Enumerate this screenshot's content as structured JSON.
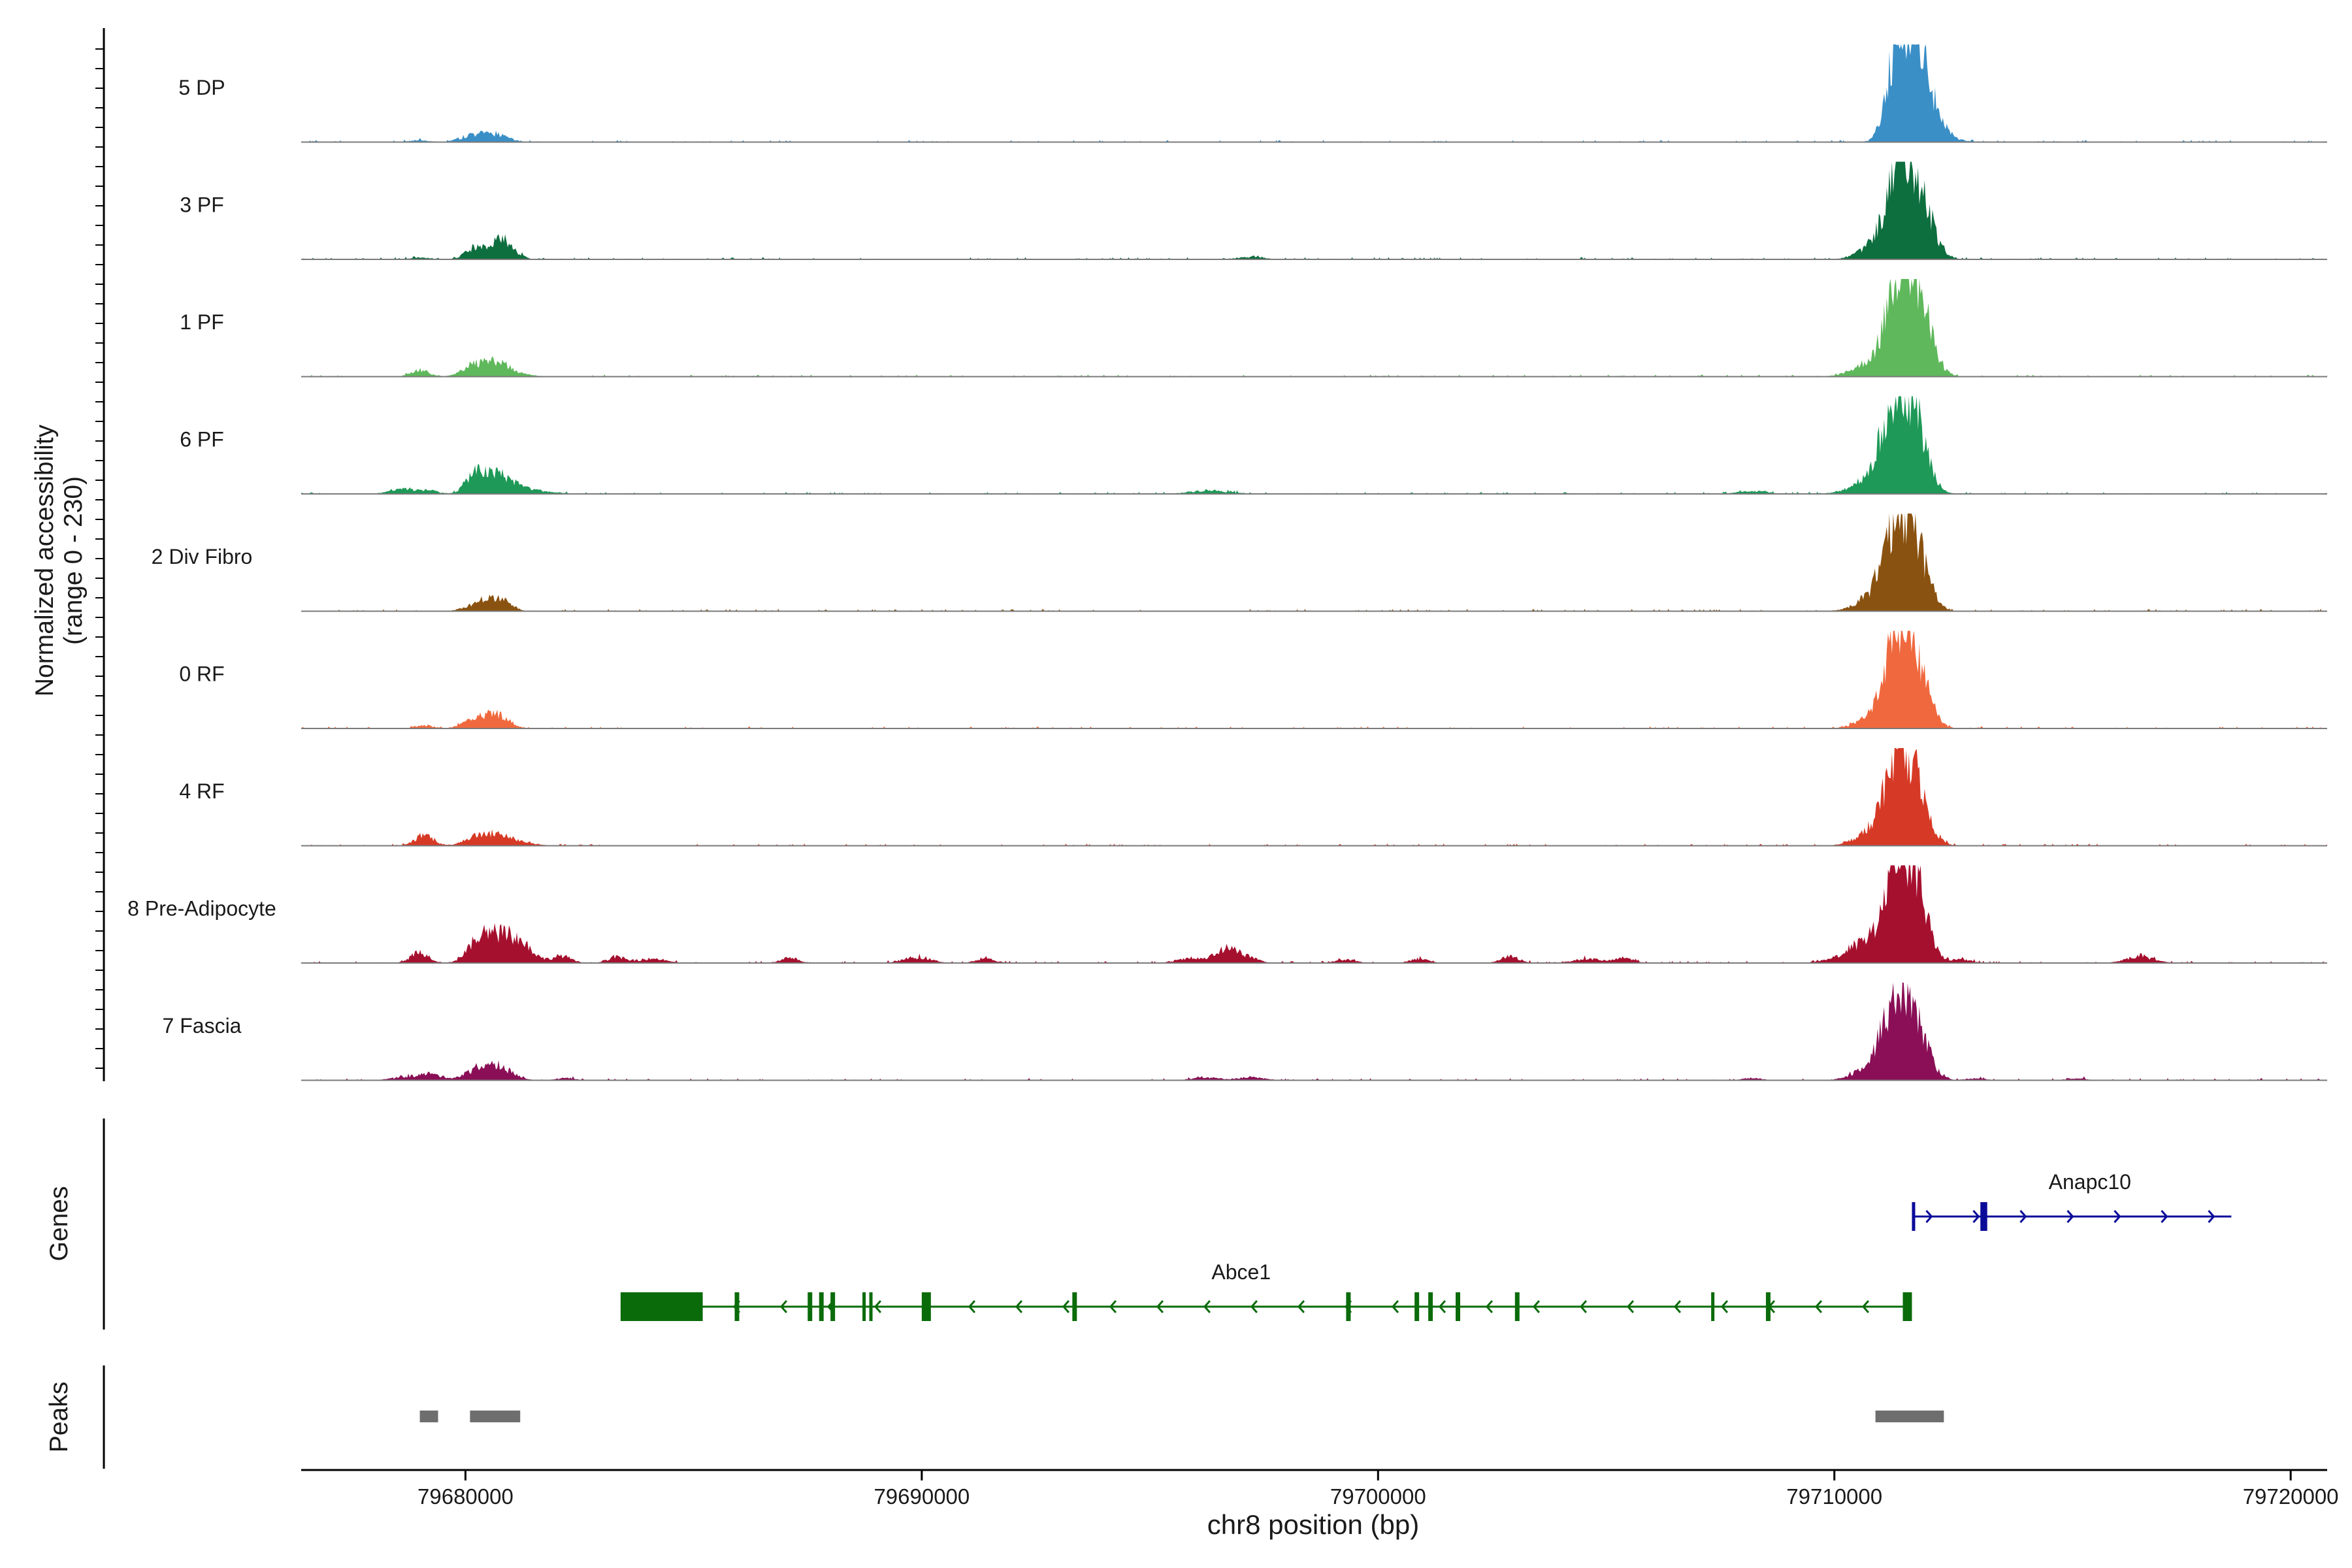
{
  "chart_data": {
    "type": "area",
    "chromosome": "chr8",
    "xlabel": "chr8 position (bp)",
    "xlim": [
      79676400,
      79720800
    ],
    "x_ticks": [
      79680000,
      79690000,
      79700000,
      79710000,
      79720000
    ],
    "x_tick_labels": [
      "79680000",
      "79690000",
      "79700000",
      "79710000",
      "79720000"
    ],
    "coverage_ylabel": [
      "Normalized accessibility",
      "(range 0 - 230)"
    ],
    "coverage_ylim": [
      0,
      230
    ],
    "genes_label": "Genes",
    "peaks_label": "Peaks",
    "series": [
      {
        "name": "5 DP",
        "color": "#3a8fc7",
        "peaks": [
          [
            79711700,
            230,
            300
          ],
          [
            79711300,
            140,
            200
          ],
          [
            79711900,
            80,
            400
          ],
          [
            79680600,
            22,
            300
          ],
          [
            79680100,
            14,
            250
          ],
          [
            79679000,
            6,
            200
          ]
        ]
      },
      {
        "name": "3 PF",
        "color": "#0d6e3e",
        "peaks": [
          [
            79711800,
            200,
            300
          ],
          [
            79711400,
            150,
            250
          ],
          [
            79711100,
            60,
            400
          ],
          [
            79680800,
            55,
            250
          ],
          [
            79680200,
            30,
            200
          ],
          [
            79679000,
            6,
            200
          ],
          [
            79697200,
            6,
            300
          ]
        ]
      },
      {
        "name": "1 PF",
        "color": "#5fb85b",
        "peaks": [
          [
            79711800,
            210,
            300
          ],
          [
            79711400,
            190,
            250
          ],
          [
            79711000,
            50,
            450
          ],
          [
            79680700,
            38,
            250
          ],
          [
            79680200,
            30,
            250
          ],
          [
            79679000,
            18,
            200
          ],
          [
            79681200,
            6,
            300
          ]
        ]
      },
      {
        "name": "6 PF",
        "color": "#1e9957",
        "peaks": [
          [
            79711700,
            210,
            300
          ],
          [
            79711300,
            160,
            250
          ],
          [
            79711000,
            60,
            450
          ],
          [
            79680700,
            45,
            300
          ],
          [
            79680200,
            50,
            200
          ],
          [
            79678600,
            16,
            250
          ],
          [
            79679200,
            10,
            200
          ],
          [
            79681200,
            14,
            500
          ],
          [
            79696300,
            10,
            400
          ],
          [
            79708200,
            8,
            300
          ]
        ]
      },
      {
        "name": "2 Div Fibro",
        "color": "#8a5210",
        "peaks": [
          [
            79711700,
            200,
            300
          ],
          [
            79711300,
            140,
            250
          ],
          [
            79711000,
            50,
            400
          ],
          [
            79680700,
            38,
            250
          ],
          [
            79680200,
            16,
            250
          ]
        ]
      },
      {
        "name": "0 RF",
        "color": "#f0693e",
        "peaks": [
          [
            79711700,
            210,
            300
          ],
          [
            79711300,
            140,
            250
          ],
          [
            79711000,
            40,
            400
          ],
          [
            79680700,
            38,
            250
          ],
          [
            79680200,
            22,
            250
          ],
          [
            79679100,
            8,
            200
          ]
        ]
      },
      {
        "name": "4 RF",
        "color": "#d63a26",
        "peaks": [
          [
            79711700,
            200,
            300
          ],
          [
            79711300,
            130,
            250
          ],
          [
            79711000,
            50,
            400
          ],
          [
            79679100,
            30,
            200
          ],
          [
            79680700,
            28,
            250
          ],
          [
            79680200,
            24,
            250
          ],
          [
            79681200,
            10,
            300
          ]
        ]
      },
      {
        "name": "8 Pre-Adipocyte",
        "color": "#a6102f",
        "peaks": [
          [
            79711700,
            230,
            300
          ],
          [
            79711300,
            150,
            250
          ],
          [
            79710800,
            60,
            500
          ],
          [
            79680800,
            70,
            350
          ],
          [
            79680300,
            50,
            250
          ],
          [
            79679000,
            30,
            200
          ],
          [
            79681300,
            30,
            250
          ],
          [
            79682100,
            20,
            200
          ],
          [
            79683300,
            16,
            200
          ],
          [
            79684100,
            12,
            300
          ],
          [
            79687100,
            14,
            200
          ],
          [
            79689900,
            16,
            300
          ],
          [
            79691400,
            12,
            200
          ],
          [
            79695900,
            12,
            300
          ],
          [
            79696700,
            40,
            250
          ],
          [
            79697200,
            12,
            200
          ],
          [
            79699300,
            10,
            200
          ],
          [
            79700900,
            12,
            200
          ],
          [
            79702900,
            18,
            200
          ],
          [
            79704600,
            12,
            300
          ],
          [
            79705400,
            14,
            200
          ],
          [
            79712800,
            10,
            200
          ],
          [
            79716700,
            18,
            300
          ]
        ]
      },
      {
        "name": "7 Fascia",
        "color": "#8a0f56",
        "peaks": [
          [
            79711700,
            180,
            300
          ],
          [
            79711300,
            120,
            250
          ],
          [
            79711000,
            60,
            400
          ],
          [
            79680700,
            38,
            300
          ],
          [
            79680200,
            22,
            250
          ],
          [
            79679200,
            16,
            300
          ],
          [
            79678600,
            6,
            300
          ],
          [
            79682200,
            6,
            200
          ],
          [
            79696200,
            8,
            300
          ],
          [
            79697200,
            8,
            300
          ],
          [
            79708200,
            6,
            200
          ],
          [
            79713100,
            6,
            200
          ],
          [
            79715300,
            6,
            200
          ]
        ]
      }
    ],
    "genes": [
      {
        "name": "Abce1",
        "strand": "-",
        "start": 79683400,
        "end": 79711700,
        "color": "#0a6b0a",
        "exons": [
          [
            79683400,
            79685200
          ],
          [
            79685900,
            79686000
          ],
          [
            79687500,
            79687600
          ],
          [
            79687750,
            79687850
          ],
          [
            79688000,
            79688100
          ],
          [
            79688700,
            79688750
          ],
          [
            79688850,
            79688900
          ],
          [
            79690000,
            79690200
          ],
          [
            79693300,
            79693400
          ],
          [
            79699300,
            79699400
          ],
          [
            79700800,
            79700900
          ],
          [
            79701100,
            79701200
          ],
          [
            79701700,
            79701800
          ],
          [
            79703000,
            79703100
          ],
          [
            79707300,
            79707350
          ],
          [
            79708500,
            79708600
          ],
          [
            79711500,
            79711700
          ]
        ]
      },
      {
        "name": "Anapc10",
        "strand": "+",
        "start": 79711700,
        "end": 79718700,
        "color": "#0a0a99",
        "exons": [
          [
            79711700,
            79711750
          ],
          [
            79713200,
            79713350
          ]
        ]
      }
    ],
    "peaks_track": [
      [
        79679000,
        79679400
      ],
      [
        79680100,
        79681200
      ],
      [
        79710900,
        79712400
      ]
    ]
  }
}
